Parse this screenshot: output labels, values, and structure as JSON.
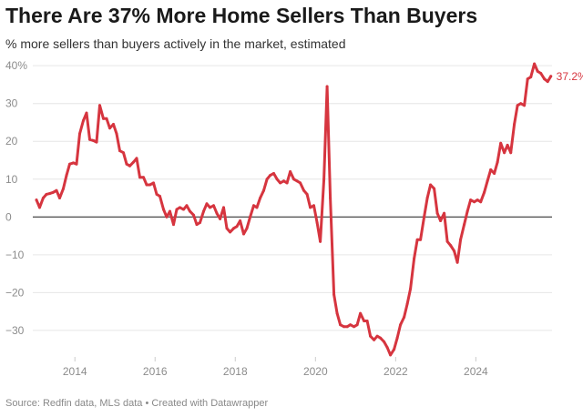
{
  "title": "There Are 37% More Home Sellers Than Buyers",
  "subtitle": "% more sellers than buyers actively in the market, estimated",
  "source": "Source: Redfin data, MLS data • Created with Datawrapper",
  "colors": {
    "line": "#d6353f",
    "grid": "#e6e6e6",
    "zero_line": "#1a1a1a",
    "tick_text": "#8c8c8c"
  },
  "chart_data": {
    "type": "line",
    "title": "There Are 37% More Home Sellers Than Buyers",
    "subtitle": "% more sellers than buyers actively in the market, estimated",
    "xlabel": "",
    "ylabel": "",
    "xlim": [
      2012.95,
      2025.9
    ],
    "ylim": [
      -37,
      41
    ],
    "x_ticks": [
      2014,
      2016,
      2018,
      2020,
      2022,
      2024
    ],
    "x_tick_labels": [
      "2014",
      "2016",
      "2018",
      "2020",
      "2022",
      "2024"
    ],
    "y_ticks": [
      40,
      30,
      20,
      10,
      0,
      -10,
      -20,
      -30
    ],
    "y_tick_labels": [
      "40%",
      "30",
      "20",
      "10",
      "0",
      "−10",
      "−20",
      "−30"
    ],
    "grid": true,
    "end_label": "37.2%",
    "series": [
      {
        "color": "#d6353f",
        "points": [
          [
            2013.04,
            4.5
          ],
          [
            2013.12,
            2.5
          ],
          [
            2013.21,
            5.0
          ],
          [
            2013.29,
            6.0
          ],
          [
            2013.37,
            6.2
          ],
          [
            2013.46,
            6.5
          ],
          [
            2013.54,
            7.0
          ],
          [
            2013.62,
            5.0
          ],
          [
            2013.71,
            7.5
          ],
          [
            2013.79,
            11.0
          ],
          [
            2013.87,
            14.0
          ],
          [
            2013.96,
            14.3
          ],
          [
            2014.04,
            14.0
          ],
          [
            2014.12,
            22.0
          ],
          [
            2014.21,
            25.5
          ],
          [
            2014.29,
            27.5
          ],
          [
            2014.37,
            20.5
          ],
          [
            2014.46,
            20.2
          ],
          [
            2014.54,
            19.8
          ],
          [
            2014.62,
            29.5
          ],
          [
            2014.71,
            26.0
          ],
          [
            2014.79,
            26.0
          ],
          [
            2014.87,
            23.5
          ],
          [
            2014.96,
            24.5
          ],
          [
            2015.04,
            22.0
          ],
          [
            2015.12,
            17.5
          ],
          [
            2015.21,
            17.0
          ],
          [
            2015.29,
            14.0
          ],
          [
            2015.37,
            13.5
          ],
          [
            2015.46,
            14.5
          ],
          [
            2015.54,
            15.5
          ],
          [
            2015.62,
            10.5
          ],
          [
            2015.71,
            10.5
          ],
          [
            2015.79,
            8.5
          ],
          [
            2015.87,
            8.5
          ],
          [
            2015.96,
            9.0
          ],
          [
            2016.04,
            6.0
          ],
          [
            2016.12,
            5.5
          ],
          [
            2016.21,
            2.0
          ],
          [
            2016.29,
            0.0
          ],
          [
            2016.37,
            1.5
          ],
          [
            2016.46,
            -2.0
          ],
          [
            2016.54,
            2.0
          ],
          [
            2016.62,
            2.5
          ],
          [
            2016.71,
            2.0
          ],
          [
            2016.79,
            3.0
          ],
          [
            2016.87,
            1.5
          ],
          [
            2016.96,
            0.5
          ],
          [
            2017.04,
            -2.0
          ],
          [
            2017.12,
            -1.5
          ],
          [
            2017.21,
            1.5
          ],
          [
            2017.29,
            3.5
          ],
          [
            2017.37,
            2.5
          ],
          [
            2017.46,
            3.0
          ],
          [
            2017.54,
            1.0
          ],
          [
            2017.62,
            -0.5
          ],
          [
            2017.71,
            2.5
          ],
          [
            2017.79,
            -3.0
          ],
          [
            2017.87,
            -4.0
          ],
          [
            2017.96,
            -3.0
          ],
          [
            2018.04,
            -2.5
          ],
          [
            2018.12,
            -1.0
          ],
          [
            2018.21,
            -4.5
          ],
          [
            2018.29,
            -3.0
          ],
          [
            2018.37,
            0.0
          ],
          [
            2018.46,
            3.0
          ],
          [
            2018.54,
            2.5
          ],
          [
            2018.62,
            5.0
          ],
          [
            2018.71,
            7.0
          ],
          [
            2018.79,
            10.0
          ],
          [
            2018.87,
            11.0
          ],
          [
            2018.96,
            11.5
          ],
          [
            2019.04,
            10.0
          ],
          [
            2019.12,
            9.0
          ],
          [
            2019.21,
            9.5
          ],
          [
            2019.29,
            9.0
          ],
          [
            2019.37,
            12.0
          ],
          [
            2019.46,
            10.0
          ],
          [
            2019.54,
            9.5
          ],
          [
            2019.62,
            9.0
          ],
          [
            2019.71,
            7.0
          ],
          [
            2019.79,
            6.0
          ],
          [
            2019.87,
            2.5
          ],
          [
            2019.96,
            3.0
          ],
          [
            2020.04,
            -1.5
          ],
          [
            2020.12,
            -6.5
          ],
          [
            2020.21,
            10.0
          ],
          [
            2020.29,
            34.5
          ],
          [
            2020.37,
            5.0
          ],
          [
            2020.46,
            -20.5
          ],
          [
            2020.54,
            -25.5
          ],
          [
            2020.62,
            -28.5
          ],
          [
            2020.71,
            -29.0
          ],
          [
            2020.79,
            -29.0
          ],
          [
            2020.87,
            -28.5
          ],
          [
            2020.96,
            -29.0
          ],
          [
            2021.04,
            -28.5
          ],
          [
            2021.12,
            -25.5
          ],
          [
            2021.21,
            -27.5
          ],
          [
            2021.29,
            -27.5
          ],
          [
            2021.37,
            -31.5
          ],
          [
            2021.46,
            -32.5
          ],
          [
            2021.54,
            -31.5
          ],
          [
            2021.62,
            -32.0
          ],
          [
            2021.71,
            -33.0
          ],
          [
            2021.79,
            -34.5
          ],
          [
            2021.87,
            -36.5
          ],
          [
            2021.96,
            -35.0
          ],
          [
            2022.04,
            -32.0
          ],
          [
            2022.12,
            -28.5
          ],
          [
            2022.21,
            -26.5
          ],
          [
            2022.29,
            -23.0
          ],
          [
            2022.37,
            -19.0
          ],
          [
            2022.46,
            -11.0
          ],
          [
            2022.54,
            -6.0
          ],
          [
            2022.62,
            -6.0
          ],
          [
            2022.71,
            0.0
          ],
          [
            2022.79,
            5.0
          ],
          [
            2022.87,
            8.5
          ],
          [
            2022.96,
            7.5
          ],
          [
            2023.04,
            1.0
          ],
          [
            2023.12,
            -1.0
          ],
          [
            2023.21,
            1.0
          ],
          [
            2023.29,
            -6.5
          ],
          [
            2023.37,
            -7.5
          ],
          [
            2023.46,
            -9.0
          ],
          [
            2023.54,
            -12.0
          ],
          [
            2023.62,
            -6.0
          ],
          [
            2023.71,
            -2.0
          ],
          [
            2023.79,
            1.5
          ],
          [
            2023.87,
            4.5
          ],
          [
            2023.96,
            4.0
          ],
          [
            2024.04,
            4.5
          ],
          [
            2024.12,
            4.0
          ],
          [
            2024.21,
            6.5
          ],
          [
            2024.29,
            9.5
          ],
          [
            2024.37,
            12.5
          ],
          [
            2024.46,
            11.5
          ],
          [
            2024.54,
            14.5
          ],
          [
            2024.62,
            19.5
          ],
          [
            2024.71,
            17.0
          ],
          [
            2024.79,
            19.0
          ],
          [
            2024.87,
            17.0
          ],
          [
            2024.96,
            24.5
          ],
          [
            2025.04,
            29.5
          ],
          [
            2025.12,
            30.0
          ],
          [
            2025.21,
            29.5
          ],
          [
            2025.29,
            36.5
          ],
          [
            2025.37,
            37.0
          ],
          [
            2025.46,
            40.5
          ],
          [
            2025.54,
            38.5
          ],
          [
            2025.62,
            38.0
          ],
          [
            2025.71,
            36.5
          ],
          [
            2025.79,
            35.8
          ],
          [
            2025.87,
            37.2
          ]
        ]
      }
    ]
  }
}
